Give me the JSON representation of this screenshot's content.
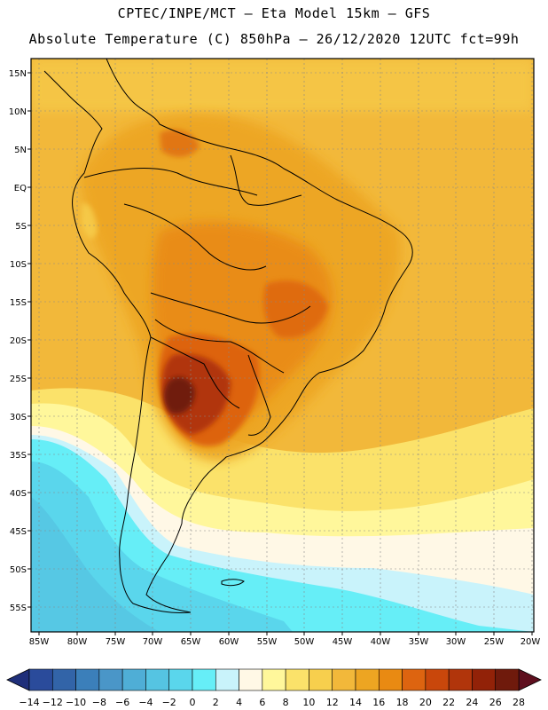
{
  "header": {
    "line1": "CPTEC/INPE/MCT –  Eta Model 15km – GFS",
    "line2": "Absolute Temperature (C) 850hPa – 26/12/2020 12UTC fct=99h"
  },
  "map": {
    "lat_labels": [
      "15N",
      "10N",
      "5N",
      "EQ",
      "5S",
      "10S",
      "15S",
      "20S",
      "25S",
      "30S",
      "35S",
      "40S",
      "45S",
      "50S",
      "55S"
    ],
    "lon_labels": [
      "85W",
      "80W",
      "75W",
      "70W",
      "65W",
      "60W",
      "55W",
      "50W",
      "45W",
      "40W",
      "35W",
      "30W",
      "25W",
      "20W"
    ]
  },
  "colorbar": {
    "labels": [
      "-14",
      "-12",
      "-10",
      "-8",
      "-6",
      "-4",
      "-2",
      "0",
      "2",
      "4",
      "6",
      "8",
      "10",
      "12",
      "14",
      "16",
      "18",
      "20",
      "22",
      "24",
      "26",
      "28"
    ],
    "colors": [
      "#2a4b9b",
      "#3264a8",
      "#3b7fba",
      "#4a96c8",
      "#4faed6",
      "#55c4e2",
      "#5ad6ec",
      "#66eef7",
      "#c9f3fb",
      "#fff8e6",
      "#fff79b",
      "#fbe26a",
      "#f7cf4d",
      "#f2b83a",
      "#eda522",
      "#e98a12",
      "#dd6410",
      "#c9470b",
      "#b1350b",
      "#922208",
      "#6f1a0c"
    ],
    "low_color": "#1f2f7a",
    "high_color": "#5e0f1e"
  }
}
